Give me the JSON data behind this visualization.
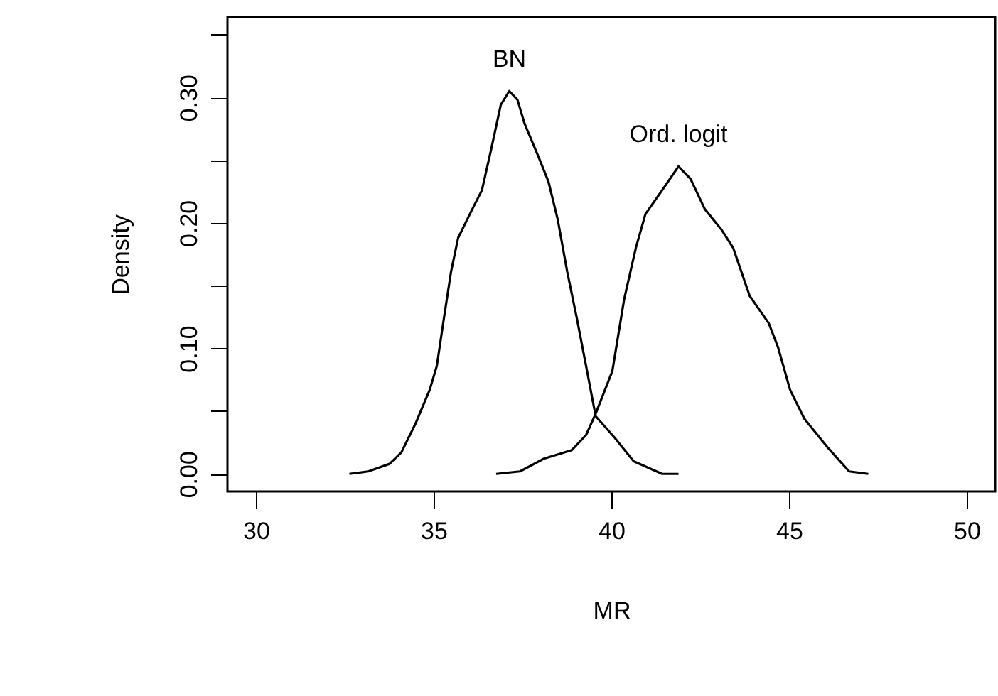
{
  "chart_data": {
    "type": "line",
    "xlabel": "MR",
    "ylabel": "Density",
    "xlim": [
      29.2,
      50.8
    ],
    "xticks": [
      30,
      35,
      40,
      45,
      50
    ],
    "ylim": [
      -0.014,
      0.364
    ],
    "yticks": [
      {
        "value": 0,
        "label": "0.00"
      },
      {
        "value": 0.05,
        "label": null
      },
      {
        "value": 0.1,
        "label": "0.10"
      },
      {
        "value": 0.15,
        "label": null
      },
      {
        "value": 0.2,
        "label": "0.20"
      },
      {
        "value": 0.25,
        "label": null
      },
      {
        "value": 0.3,
        "label": "0.30"
      },
      {
        "value": 0.35,
        "label": null
      }
    ],
    "grid": false,
    "marker": "none",
    "line_style": "solid",
    "series": [
      {
        "name": "BN",
        "color": "#000000",
        "x": [
          32.63,
          33.16,
          33.76,
          34.09,
          34.49,
          34.89,
          35.09,
          35.29,
          35.49,
          35.69,
          36.09,
          36.36,
          36.63,
          36.89,
          37.13,
          37.36,
          37.56,
          37.96,
          38.23,
          38.49,
          38.76,
          39.03,
          39.29,
          39.56,
          40.09,
          40.63,
          41.43,
          41.89
        ],
        "values": [
          0.0,
          0.002,
          0.008,
          0.017,
          0.04,
          0.067,
          0.086,
          0.124,
          0.161,
          0.188,
          0.211,
          0.226,
          0.26,
          0.294,
          0.305,
          0.298,
          0.279,
          0.252,
          0.233,
          0.203,
          0.161,
          0.124,
          0.086,
          0.046,
          0.029,
          0.01,
          0.0,
          0.0
        ]
      },
      {
        "name": "Ord. logit",
        "color": "#000000",
        "x": [
          36.76,
          37.43,
          38.09,
          38.89,
          39.29,
          39.56,
          40.03,
          40.36,
          40.69,
          40.96,
          41.43,
          41.89,
          42.23,
          42.63,
          43.09,
          43.43,
          43.89,
          44.43,
          44.69,
          45.03,
          45.43,
          46.09,
          46.69,
          47.23
        ],
        "values": [
          0.0,
          0.002,
          0.012,
          0.019,
          0.031,
          0.048,
          0.082,
          0.139,
          0.18,
          0.207,
          0.226,
          0.245,
          0.235,
          0.211,
          0.195,
          0.18,
          0.142,
          0.12,
          0.101,
          0.067,
          0.044,
          0.021,
          0.002,
          0.0
        ]
      }
    ]
  }
}
